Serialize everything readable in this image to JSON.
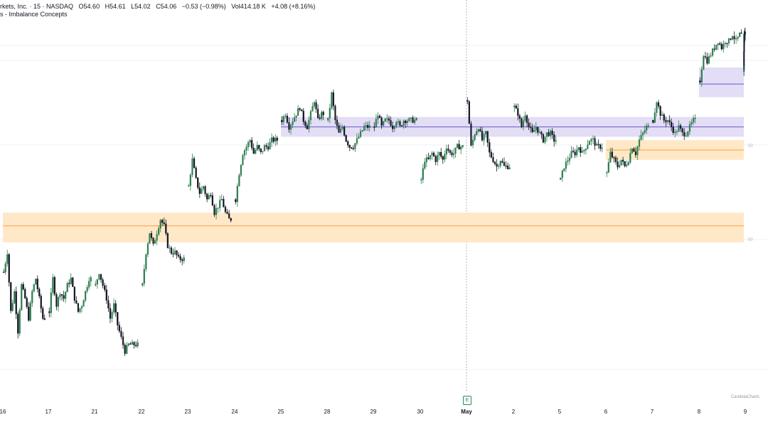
{
  "legend": {
    "title": "rkets, Inc. · 15 · NASDAQ",
    "open": "O54.60",
    "high": "H54.61",
    "low": "L54.02",
    "close": "C54.06",
    "change": "−0.53 (−0.98%)",
    "volume": "Vol414.18 K",
    "volume_change": "+4.08 (+8.16%)",
    "indicator": "s - Imbalance Concepts"
  },
  "watermark": "CandelaCharts",
  "earnings_badge": "E",
  "colors": {
    "up": "#2e7d4f",
    "down": "#131722",
    "bearish_zone_fill": "#ffe7c4",
    "bearish_zone_line": "#f7a23b",
    "bullish_zone_fill": "#e2dbf5",
    "bullish_zone_line": "#6a5acd",
    "grid": "#e0e3eb"
  },
  "chart_data": {
    "type": "candlestick",
    "x_tick_labels": [
      "16",
      "17",
      "21",
      "22",
      "23",
      "24",
      "25",
      "28",
      "29",
      "30",
      "May",
      "2",
      "5",
      "6",
      "7",
      "8",
      "9"
    ],
    "major_tick": "May",
    "y_range_approx": [
      49.2,
      54.8
    ],
    "price_axis_labels": [
      "50",
      "50",
      "50"
    ],
    "last_close": 54.06,
    "session_anchors": [
      {
        "label": "16",
        "prices": [
          51.0,
          51.3,
          50.4,
          50.7,
          50.1,
          50.8,
          50.6,
          50.3,
          50.7,
          50.9,
          50.6,
          50.3
        ]
      },
      {
        "label": "17",
        "prices": [
          50.4,
          50.9,
          50.5,
          50.7,
          50.6,
          50.8,
          50.9,
          50.6,
          50.4,
          50.5,
          50.7,
          50.9
        ]
      },
      {
        "label": "21",
        "prices": [
          50.8,
          51.0,
          50.8,
          50.6,
          50.3,
          50.5,
          50.2,
          50.0,
          49.8,
          49.9,
          49.9,
          49.9
        ]
      },
      {
        "label": "22",
        "prices": [
          50.8,
          51.3,
          51.6,
          51.4,
          51.6,
          51.8,
          51.7,
          51.4,
          51.3,
          51.3,
          51.2,
          51.2
        ]
      },
      {
        "label": "23",
        "prices": [
          52.3,
          52.7,
          52.4,
          52.2,
          52.3,
          52.1,
          52.2,
          51.9,
          52.0,
          52.1,
          51.9,
          51.8
        ]
      },
      {
        "label": "24",
        "prices": [
          52.1,
          52.5,
          52.8,
          52.9,
          53.0,
          52.8,
          52.9,
          52.8,
          52.9,
          52.9,
          53.0,
          53.0
        ]
      },
      {
        "label": "25",
        "prices": [
          53.3,
          53.4,
          53.2,
          53.3,
          53.4,
          53.5,
          53.3,
          53.2,
          53.4,
          53.6,
          53.3,
          53.4
        ]
      },
      {
        "label": "28",
        "prices": [
          53.3,
          53.7,
          53.3,
          53.1,
          53.2,
          53.0,
          52.9,
          52.9,
          53.0,
          53.1,
          53.2,
          53.2
        ]
      },
      {
        "label": "29",
        "prices": [
          53.2,
          53.4,
          53.2,
          53.3,
          53.3,
          53.2,
          53.3,
          53.2,
          53.3,
          53.3,
          53.3,
          53.3
        ]
      },
      {
        "label": "30",
        "prices": [
          52.4,
          52.7,
          52.7,
          52.8,
          52.7,
          52.8,
          52.7,
          52.9,
          52.8,
          52.8,
          52.9,
          52.9
        ]
      },
      {
        "label": "May",
        "prices": [
          53.6,
          52.9,
          53.1,
          53.2,
          53.0,
          53.1,
          52.8,
          52.7,
          52.6,
          52.7,
          52.6,
          52.6
        ]
      },
      {
        "label": "2",
        "prices": [
          53.5,
          53.4,
          53.2,
          53.4,
          53.2,
          53.1,
          53.2,
          53.1,
          53.0,
          53.1,
          53.1,
          53.0
        ]
      },
      {
        "label": "5",
        "prices": [
          52.4,
          52.6,
          52.7,
          52.8,
          52.8,
          52.9,
          52.8,
          52.9,
          53.0,
          53.0,
          52.9,
          52.9
        ]
      },
      {
        "label": "6",
        "prices": [
          52.5,
          52.8,
          52.7,
          52.6,
          52.7,
          52.6,
          52.7,
          52.9,
          52.8,
          53.0,
          53.1,
          53.2
        ]
      },
      {
        "label": "7",
        "prices": [
          53.3,
          53.6,
          53.4,
          53.3,
          53.3,
          53.2,
          53.1,
          53.2,
          53.1,
          53.1,
          53.2,
          53.3
        ]
      },
      {
        "label": "8",
        "prices": [
          53.9,
          54.3,
          54.2,
          54.3,
          54.4,
          54.5,
          54.4,
          54.5,
          54.5,
          54.6,
          54.5,
          54.6
        ]
      },
      {
        "label": "9",
        "prices": [
          54.6,
          54.6,
          54.5,
          54.6,
          54.6,
          54.06
        ]
      }
    ],
    "zones": [
      {
        "type": "bearish",
        "from_label": "16",
        "to_label": "9",
        "top": 51.9,
        "bottom": 51.45,
        "mid": 51.7
      },
      {
        "type": "bullish",
        "from_label": "25",
        "to_label": "9",
        "top": 53.35,
        "bottom": 53.05,
        "mid": 53.2
      },
      {
        "type": "bearish",
        "from_label": "6",
        "to_label": "9",
        "top": 53.0,
        "bottom": 52.7,
        "mid": 52.85
      },
      {
        "type": "bullish",
        "from_label": "8",
        "to_label": "9",
        "top": 54.1,
        "bottom": 53.65,
        "mid": 53.85
      }
    ]
  }
}
